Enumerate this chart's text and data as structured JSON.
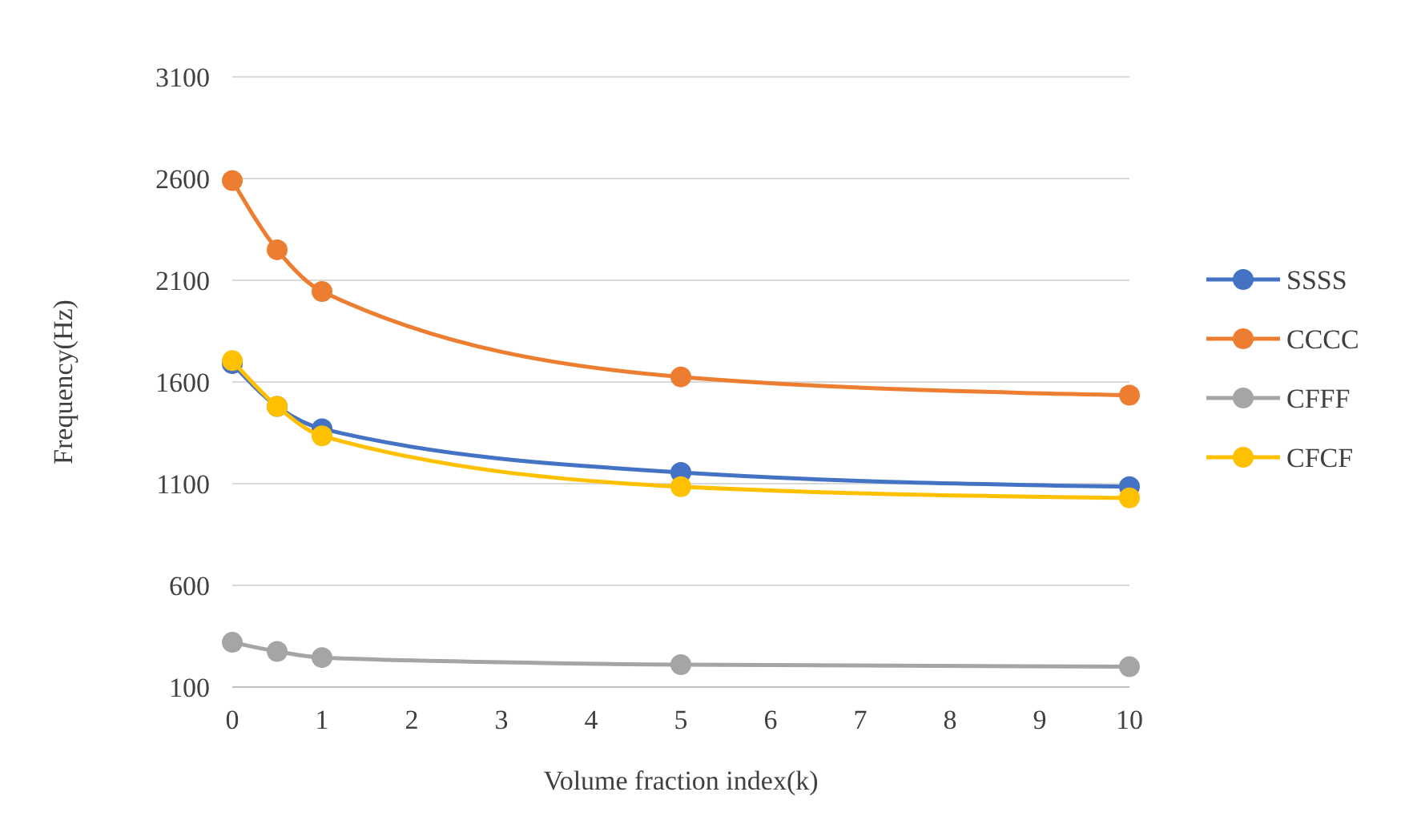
{
  "chart_data": {
    "type": "line",
    "xlabel": "Volume fraction index(k)",
    "ylabel": "Frequency(Hz)",
    "x": [
      0,
      0.5,
      1,
      5,
      10
    ],
    "series": [
      {
        "name": "SSSS",
        "color": "#4472c4",
        "values": [
          1690,
          1480,
          1370,
          1155,
          1085
        ]
      },
      {
        "name": "CCCC",
        "color": "#ed7d31",
        "values": [
          2590,
          2250,
          2045,
          1625,
          1535
        ]
      },
      {
        "name": "CFFF",
        "color": "#a5a5a5",
        "values": [
          320,
          275,
          245,
          210,
          200
        ]
      },
      {
        "name": "CFCF",
        "color": "#ffc000",
        "values": [
          1705,
          1480,
          1335,
          1085,
          1030
        ]
      }
    ],
    "xlim": [
      0,
      10
    ],
    "xticks": [
      0,
      1,
      2,
      3,
      4,
      5,
      6,
      7,
      8,
      9,
      10
    ],
    "ylim": [
      100,
      3100
    ],
    "yticks": [
      100,
      600,
      1100,
      1600,
      2100,
      2600,
      3100
    ],
    "grid": "y",
    "legend": "right",
    "marker": "circle",
    "line_style": "solid"
  }
}
